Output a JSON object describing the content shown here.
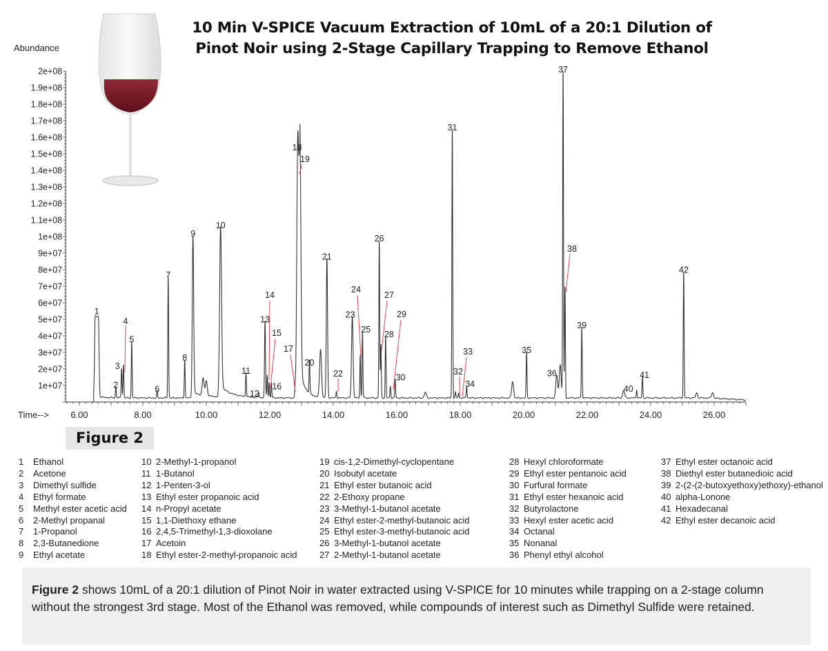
{
  "title_line1": "10 Min V-SPICE Vacuum Extraction of 10mL of a 20:1 Dilution of",
  "title_line2": "Pinot Noir using 2-Stage Capillary Trapping to Remove Ethanol",
  "figure_label": "Figure 2",
  "chart_data": {
    "type": "line",
    "title": "10 Min V-SPICE Vacuum Extraction of 10mL of a 20:1 Dilution of Pinot Noir using 2-Stage Capillary Trapping to Remove Ethanol",
    "xlabel": "Time-->",
    "ylabel": "Abundance",
    "xlim": [
      5.57,
      27.0
    ],
    "ylim": [
      0,
      200000000
    ],
    "x_ticks": [
      "6.00",
      "8.00",
      "10.00",
      "12.00",
      "14.00",
      "16.00",
      "18.00",
      "20.00",
      "22.00",
      "24.00",
      "26.00"
    ],
    "x_tick_values": [
      6,
      8,
      10,
      12,
      14,
      16,
      18,
      20,
      22,
      24,
      26
    ],
    "y_ticks": [
      "1e+07",
      "2e+07",
      "3e+07",
      "4e+07",
      "5e+07",
      "6e+07",
      "7e+07",
      "8e+07",
      "9e+07",
      "1e+08",
      "1.1e+08",
      "1.2e+08",
      "1.3e+08",
      "1.4e+08",
      "1.5e+08",
      "1.6e+08",
      "1.7e+08",
      "1.8e+08",
      "1.9e+08",
      "2e+08"
    ],
    "grid": false,
    "line_color": "#333333",
    "leader_color": "#e8414f",
    "peaks": [
      {
        "label": "1",
        "rt": 6.55,
        "abundance": 51000000
      },
      {
        "label": "2",
        "rt": 7.15,
        "abundance": 6500000
      },
      {
        "label": "3",
        "rt": 7.33,
        "abundance": 18000000
      },
      {
        "label": "4",
        "rt": 7.39,
        "abundance": 20000000
      },
      {
        "label": "5",
        "rt": 7.65,
        "abundance": 34000000
      },
      {
        "label": "6",
        "rt": 8.45,
        "abundance": 4000000
      },
      {
        "label": "7",
        "rt": 8.8,
        "abundance": 73000000
      },
      {
        "label": "8",
        "rt": 9.32,
        "abundance": 23000000
      },
      {
        "label": "9",
        "rt": 9.58,
        "abundance": 98000000
      },
      {
        "label": "10",
        "rt": 10.45,
        "abundance": 103000000
      },
      {
        "label": "11",
        "rt": 11.25,
        "abundance": 15000000
      },
      {
        "label": "12",
        "rt": 11.65,
        "abundance": 3000000
      },
      {
        "label": "13",
        "rt": 11.85,
        "abundance": 46000000
      },
      {
        "label": "14",
        "rt": 11.92,
        "abundance": 14000000
      },
      {
        "label": "15",
        "rt": 11.98,
        "abundance": 9000000
      },
      {
        "label": "16",
        "rt": 12.05,
        "abundance": 9000000
      },
      {
        "label": "17",
        "rt": 12.8,
        "abundance": 6000000
      },
      {
        "label": "18",
        "rt": 12.88,
        "abundance": 150000000
      },
      {
        "label": "19",
        "rt": 12.95,
        "abundance": 140000000
      },
      {
        "label": "20",
        "rt": 13.25,
        "abundance": 20000000
      },
      {
        "label": "21",
        "rt": 13.8,
        "abundance": 84000000
      },
      {
        "label": "22",
        "rt": 14.1,
        "abundance": 4000000
      },
      {
        "label": "23",
        "rt": 14.6,
        "abundance": 49000000
      },
      {
        "label": "24",
        "rt": 14.85,
        "abundance": 26000000
      },
      {
        "label": "25",
        "rt": 14.92,
        "abundance": 40000000
      },
      {
        "label": "26",
        "rt": 15.45,
        "abundance": 95000000
      },
      {
        "label": "27",
        "rt": 15.5,
        "abundance": 32000000
      },
      {
        "label": "28",
        "rt": 15.65,
        "abundance": 37000000
      },
      {
        "label": "29",
        "rt": 15.8,
        "abundance": 7000000
      },
      {
        "label": "30",
        "rt": 15.95,
        "abundance": 11000000
      },
      {
        "label": "31",
        "rt": 17.75,
        "abundance": 162000000
      },
      {
        "label": "32",
        "rt": 17.85,
        "abundance": 3500000
      },
      {
        "label": "33",
        "rt": 17.95,
        "abundance": 3000000
      },
      {
        "label": "34",
        "rt": 18.2,
        "abundance": 7000000
      },
      {
        "label": "35",
        "rt": 20.09,
        "abundance": 27500000
      },
      {
        "label": "36",
        "rt": 21.04,
        "abundance": 13500000
      },
      {
        "label": "37",
        "rt": 21.24,
        "abundance": 197000000
      },
      {
        "label": "38",
        "rt": 21.3,
        "abundance": 67000000
      },
      {
        "label": "39",
        "rt": 21.83,
        "abundance": 42500000
      },
      {
        "label": "40",
        "rt": 23.56,
        "abundance": 5000000
      },
      {
        "label": "41",
        "rt": 23.74,
        "abundance": 12500000
      },
      {
        "label": "42",
        "rt": 25.04,
        "abundance": 76000000
      }
    ],
    "unlabeled_peaks": [
      {
        "rt": 9.9,
        "abundance": 10000000
      },
      {
        "rt": 10.0,
        "abundance": 9000000
      },
      {
        "rt": 13.6,
        "abundance": 29000000
      },
      {
        "rt": 16.9,
        "abundance": 3500000
      },
      {
        "rt": 19.65,
        "abundance": 10000000
      },
      {
        "rt": 21.15,
        "abundance": 20000000
      },
      {
        "rt": 23.15,
        "abundance": 4500000
      },
      {
        "rt": 25.45,
        "abundance": 3000000
      },
      {
        "rt": 25.95,
        "abundance": 3500000
      }
    ]
  },
  "legend": {
    "columns": [
      [
        [
          "1",
          "Ethanol"
        ],
        [
          "2",
          "Acetone"
        ],
        [
          "3",
          "Dimethyl sulfide"
        ],
        [
          "4",
          "Ethyl formate"
        ],
        [
          "5",
          "Methyl ester acetic acid"
        ],
        [
          "6",
          "2-Methyl propanal"
        ],
        [
          "7",
          "1-Propanol"
        ],
        [
          "8",
          "2,3-Butanedione"
        ],
        [
          "9",
          "Ethyl acetate"
        ]
      ],
      [
        [
          "10",
          "2-Methyl-1-propanol"
        ],
        [
          "11",
          "1-Butanol"
        ],
        [
          "12",
          "1-Penten-3-ol"
        ],
        [
          "13",
          "Ethyl ester propanoic acid"
        ],
        [
          "14",
          "n-Propyl acetate"
        ],
        [
          "15",
          "1,1-Diethoxy ethane"
        ],
        [
          "16",
          "2,4,5-Trimethyl-1,3-dioxolane"
        ],
        [
          "17",
          "Acetoin"
        ],
        [
          "18",
          "Ethyl ester-2-methyl-propanoic acid"
        ]
      ],
      [
        [
          "19",
          "cis-1,2-Dimethyl-cyclopentane"
        ],
        [
          "20",
          "Isobutyl acetate"
        ],
        [
          "21",
          "Ethyl ester butanoic acid"
        ],
        [
          "22",
          "2-Ethoxy propane"
        ],
        [
          "23",
          "3-Methyl-1-butanol acetate"
        ],
        [
          "24",
          "Ethyl ester-2-methyl-butanoic acid"
        ],
        [
          "25",
          "Ethyl ester-3-methyl-butanoic acid"
        ],
        [
          "26",
          "3-Methyl-1-butanol acetate"
        ],
        [
          "27",
          "2-Methyl-1-butanol acetate"
        ]
      ],
      [
        [
          "28",
          "Hexyl chloroformate"
        ],
        [
          "29",
          "Ethyl ester pentanoic acid"
        ],
        [
          "30",
          "Furfural formate"
        ],
        [
          "31",
          "Ethyl ester hexanoic acid"
        ],
        [
          "32",
          "Butyrolactone"
        ],
        [
          "33",
          "Hexyl ester acetic acid"
        ],
        [
          "34",
          "Octanal"
        ],
        [
          "35",
          "Nonanal"
        ],
        [
          "36",
          "Phenyl ethyl alcohol"
        ]
      ],
      [
        [
          "37",
          "Ethyl ester octanoic acid"
        ],
        [
          "38",
          "Diethyl ester butanedioic acid"
        ],
        [
          "39",
          "2-(2-(2-butoxyethoxy)ethoxy)-ethanol"
        ],
        [
          "40",
          "alpha-Lonone"
        ],
        [
          "41",
          "Hexadecanal"
        ],
        [
          "42",
          "Ethyl ester decanoic acid"
        ]
      ]
    ]
  },
  "caption": {
    "bold": "Figure 2",
    "text": " shows 10mL of a 20:1 dilution of Pinot Noir in water extracted using V-SPICE for 10 minutes while trapping on a 2-stage column without the strongest 3rd stage. Most of the Ethanol was removed, while compounds of interest such as Dimethyl Sulfide were retained."
  },
  "decor": {
    "image": "wine-glass",
    "wine_color": "#7a1622"
  }
}
